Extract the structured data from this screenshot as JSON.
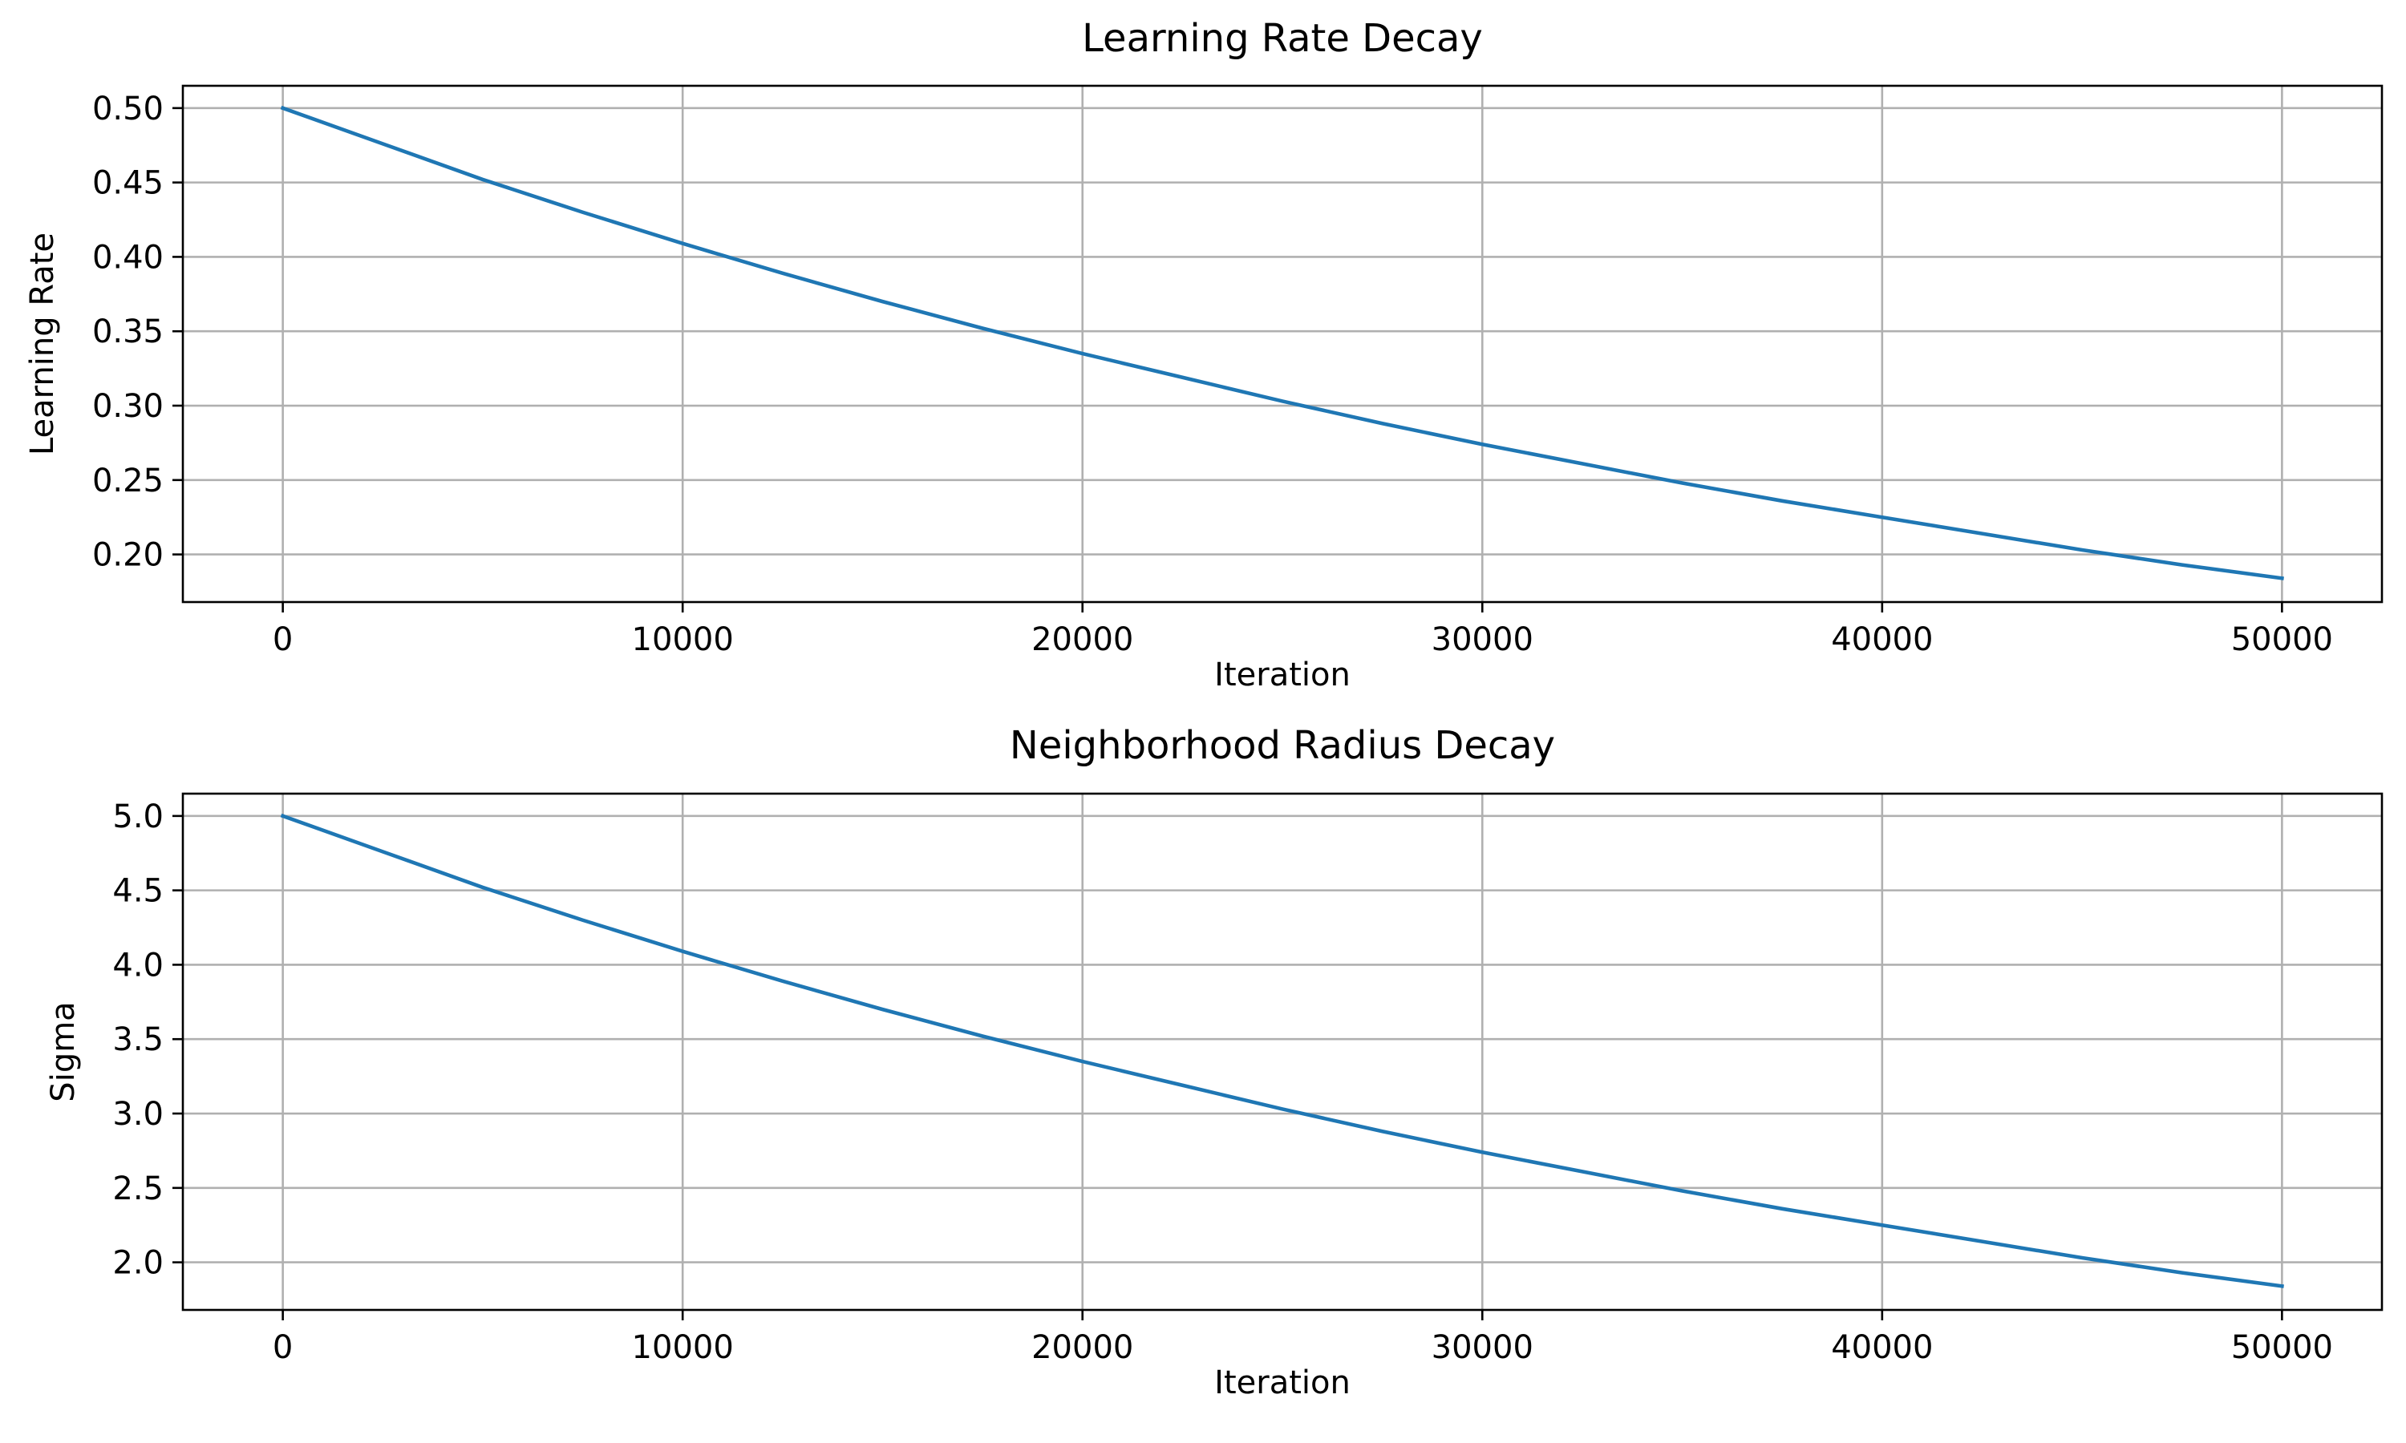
{
  "chart_data": [
    {
      "type": "line",
      "title": "Learning Rate Decay",
      "xlabel": "Iteration",
      "ylabel": "Learning Rate",
      "xlim": [
        -2500,
        52500
      ],
      "ylim": [
        0.168,
        0.515
      ],
      "xticks": [
        0,
        10000,
        20000,
        30000,
        40000,
        50000
      ],
      "xtick_labels": [
        "0",
        "10000",
        "20000",
        "30000",
        "40000",
        "50000"
      ],
      "yticks": [
        0.2,
        0.25,
        0.3,
        0.35,
        0.4,
        0.45,
        0.5
      ],
      "ytick_labels": [
        "0.20",
        "0.25",
        "0.30",
        "0.35",
        "0.40",
        "0.45",
        "0.50"
      ],
      "grid": true,
      "series": [
        {
          "color": "#1f77b4",
          "x": [
            0,
            2500,
            5000,
            7500,
            10000,
            12500,
            15000,
            17500,
            20000,
            22500,
            25000,
            27500,
            30000,
            32500,
            35000,
            37500,
            40000,
            42500,
            45000,
            47500,
            50000
          ],
          "values": [
            0.5,
            0.476,
            0.452,
            0.43,
            0.409,
            0.389,
            0.37,
            0.352,
            0.335,
            0.319,
            0.303,
            0.288,
            0.274,
            0.261,
            0.248,
            0.236,
            0.225,
            0.214,
            0.203,
            0.193,
            0.184
          ]
        }
      ]
    },
    {
      "type": "line",
      "title": "Neighborhood Radius Decay",
      "xlabel": "Iteration",
      "ylabel": "Sigma",
      "xlim": [
        -2500,
        52500
      ],
      "ylim": [
        1.68,
        5.15
      ],
      "xticks": [
        0,
        10000,
        20000,
        30000,
        40000,
        50000
      ],
      "xtick_labels": [
        "0",
        "10000",
        "20000",
        "30000",
        "40000",
        "50000"
      ],
      "yticks": [
        2.0,
        2.5,
        3.0,
        3.5,
        4.0,
        4.5,
        5.0
      ],
      "ytick_labels": [
        "2.0",
        "2.5",
        "3.0",
        "3.5",
        "4.0",
        "4.5",
        "5.0"
      ],
      "grid": true,
      "series": [
        {
          "color": "#1f77b4",
          "x": [
            0,
            2500,
            5000,
            7500,
            10000,
            12500,
            15000,
            17500,
            20000,
            22500,
            25000,
            27500,
            30000,
            32500,
            35000,
            37500,
            40000,
            42500,
            45000,
            47500,
            50000
          ],
          "values": [
            5.0,
            4.76,
            4.52,
            4.3,
            4.09,
            3.89,
            3.7,
            3.52,
            3.35,
            3.19,
            3.03,
            2.88,
            2.74,
            2.61,
            2.48,
            2.36,
            2.25,
            2.14,
            2.03,
            1.93,
            1.84
          ]
        }
      ]
    }
  ]
}
